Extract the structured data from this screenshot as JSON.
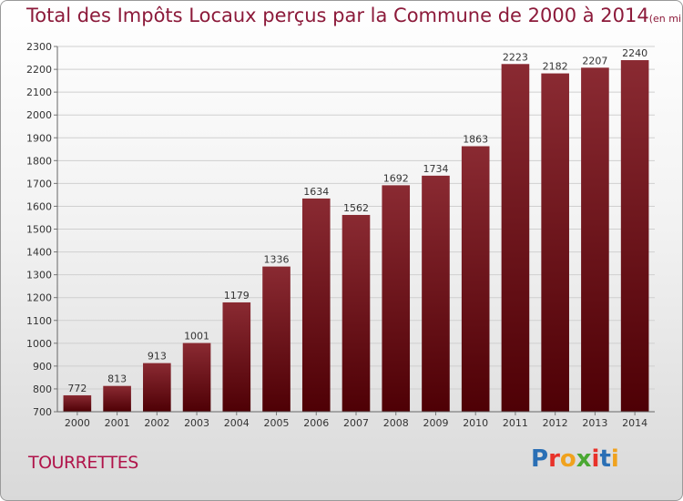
{
  "header": {
    "title": "Total des Impôts Locaux perçus par la Commune de 2000 à 2014",
    "unit": "(en milliers d'€)"
  },
  "footer": {
    "commune": "TOURRETTES",
    "logo": {
      "letters": [
        "P",
        "r",
        "o",
        "x",
        "i",
        "t",
        "i"
      ],
      "colors": [
        "#2a6fb5",
        "#e8322a",
        "#f0a21e",
        "#4aa832",
        "#e8322a",
        "#2a6fb5",
        "#f0a21e"
      ]
    }
  },
  "chart_data": {
    "type": "bar",
    "categories": [
      "2000",
      "2001",
      "2002",
      "2003",
      "2004",
      "2005",
      "2006",
      "2007",
      "2008",
      "2009",
      "2010",
      "2011",
      "2012",
      "2013",
      "2014"
    ],
    "values": [
      772,
      813,
      913,
      1001,
      1179,
      1336,
      1634,
      1562,
      1692,
      1734,
      1863,
      2223,
      2182,
      2207,
      2240
    ],
    "data_labels": [
      "772",
      "813",
      "913",
      "1001",
      "1179",
      "1336",
      "1634",
      "1562",
      "1692",
      "1734",
      "1863",
      "2223",
      "2182",
      "2207",
      "2240"
    ],
    "yticks": [
      700,
      800,
      900,
      1000,
      1100,
      1200,
      1300,
      1400,
      1500,
      1600,
      1700,
      1800,
      1900,
      2000,
      2100,
      2200,
      2300
    ],
    "ylim": [
      700,
      2300
    ],
    "grid": true,
    "bar_color": "#7a1a22"
  }
}
